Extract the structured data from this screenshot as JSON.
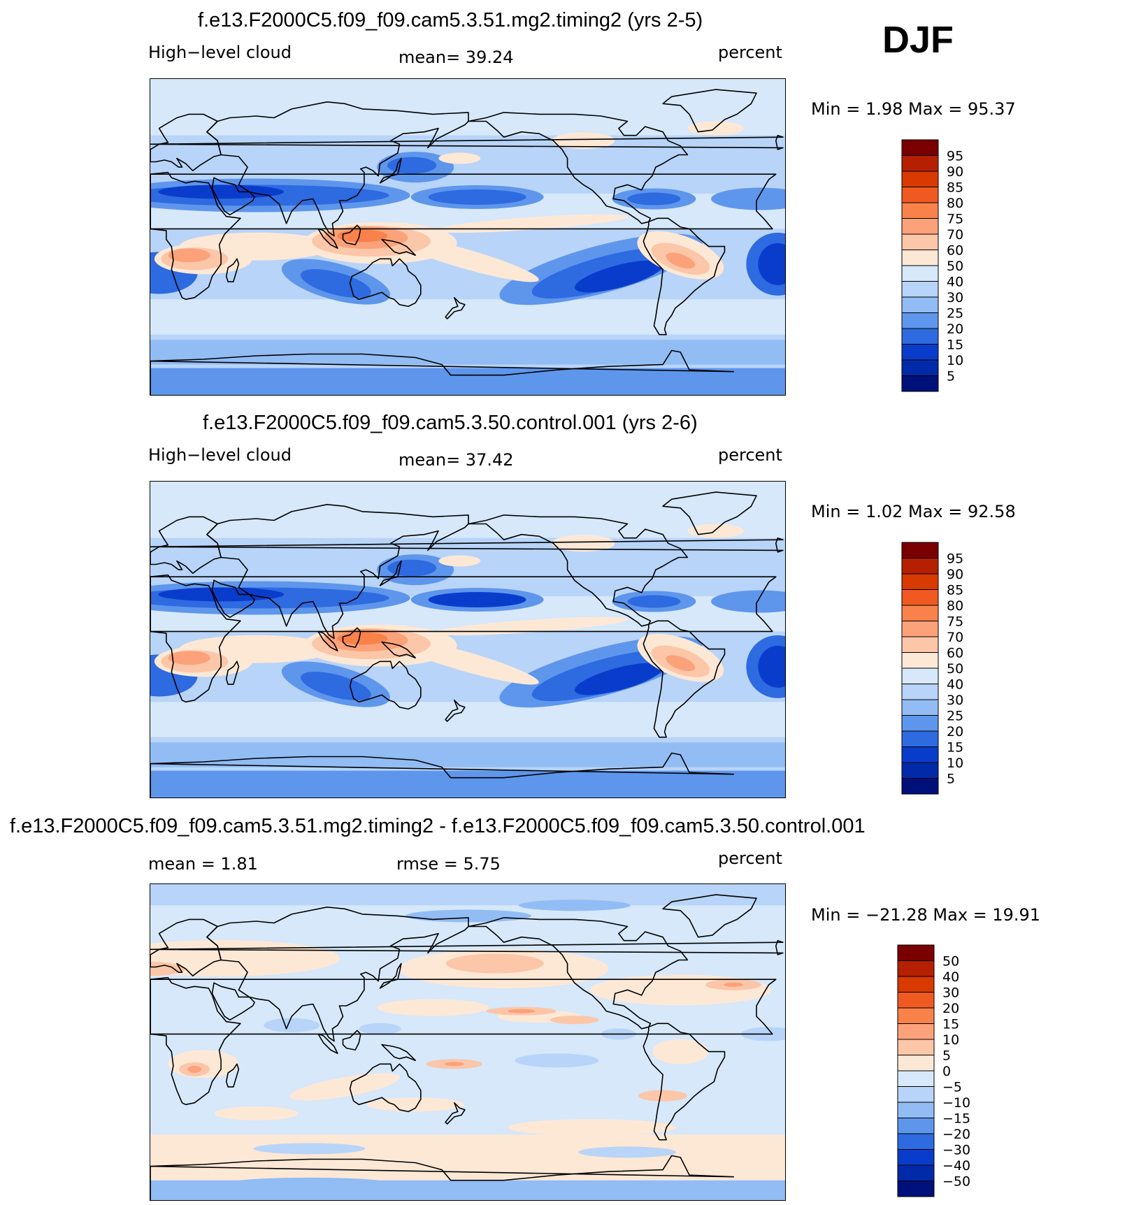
{
  "season": "DJF",
  "panels": [
    {
      "title": "f.e13.F2000C5.f09_f09.cam5.3.51.mg2.timing2 (yrs 2-5)",
      "left_label": "High−level  cloud",
      "center_label": "mean=   39.24",
      "units": "percent",
      "stats": "Min  =     1.98  Max  =    95.37",
      "chart_data": {
        "type": "heatmap",
        "title": "f.e13.F2000C5.f09_f09.cam5.3.51.mg2.timing2 (yrs 2-5)",
        "variable": "High−level  cloud",
        "units": "percent",
        "mean": 39.24,
        "min": 1.98,
        "max": 95.37,
        "colorbar_labels": [
          "95",
          "90",
          "85",
          "80",
          "75",
          "70",
          "60",
          "50",
          "40",
          "30",
          "25",
          "20",
          "15",
          "10",
          "5"
        ]
      }
    },
    {
      "title": "f.e13.F2000C5.f09_f09.cam5.3.50.control.001 (yrs 2-6)",
      "left_label": "High−level  cloud",
      "center_label": "mean=   37.42",
      "units": "percent",
      "stats": "Min  =     1.02  Max  =    92.58",
      "chart_data": {
        "type": "heatmap",
        "title": "f.e13.F2000C5.f09_f09.cam5.3.50.control.001 (yrs 2-6)",
        "variable": "High−level  cloud",
        "units": "percent",
        "mean": 37.42,
        "min": 1.02,
        "max": 92.58,
        "colorbar_labels": [
          "95",
          "90",
          "85",
          "80",
          "75",
          "70",
          "60",
          "50",
          "40",
          "30",
          "25",
          "20",
          "15",
          "10",
          "5"
        ]
      }
    },
    {
      "title": "f.e13.F2000C5.f09_f09.cam5.3.51.mg2.timing2 - f.e13.F2000C5.f09_f09.cam5.3.50.control.001",
      "left_label": "mean  =     1.81",
      "center_label": "rmse  =     5.75",
      "units": "percent",
      "stats": "Min  =  −21.28  Max  =    19.91",
      "chart_data": {
        "type": "heatmap",
        "title": "f.e13.F2000C5.f09_f09.cam5.3.51.mg2.timing2 - f.e13.F2000C5.f09_f09.cam5.3.50.control.001",
        "units": "percent",
        "mean": 1.81,
        "rmse": 5.75,
        "min": -21.28,
        "max": 19.91,
        "colorbar_labels": [
          "50",
          "40",
          "30",
          "20",
          "15",
          "10",
          "5",
          "0",
          "−5",
          "−10",
          "−15",
          "−20",
          "−30",
          "−40",
          "−50"
        ]
      }
    }
  ],
  "colors": {
    "abs_scale": [
      "#7a0000",
      "#b52000",
      "#d83a00",
      "#f05a20",
      "#f8824a",
      "#fba27a",
      "#fcc6a8",
      "#fde8d6",
      "#d6e8fa",
      "#b8d4f8",
      "#92bcf4",
      "#5e96ec",
      "#2e6ae0",
      "#0a3ccc",
      "#002aa8",
      "#00107a"
    ],
    "diff_scale": [
      "#7a0000",
      "#b52000",
      "#d83a00",
      "#f05a20",
      "#f8824a",
      "#fba27a",
      "#fcc6a8",
      "#fde8d6",
      "#d6e8fa",
      "#b8d4f8",
      "#92bcf4",
      "#5e96ec",
      "#2e6ae0",
      "#0a3ccc",
      "#002aa8",
      "#00107a"
    ]
  }
}
